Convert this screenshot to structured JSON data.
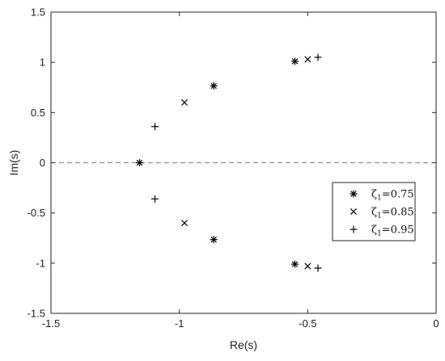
{
  "chart_data": {
    "type": "scatter",
    "xlabel": "Re(s)",
    "ylabel": "Im(s)",
    "xlim": [
      -1.5,
      0
    ],
    "ylim": [
      -1.5,
      1.5
    ],
    "xticks": [
      "-1.5",
      "-1",
      "-0.5",
      "0"
    ],
    "yticks": [
      "-1.5",
      "-1",
      "-0.5",
      "0",
      "0.5",
      "1",
      "1.5"
    ],
    "xtick_values": [
      -1.5,
      -1,
      -0.5,
      0
    ],
    "ytick_values": [
      -1.5,
      -1,
      -0.5,
      0,
      0.5,
      1,
      1.5
    ],
    "grid": false,
    "reference_line": {
      "y": 0,
      "style": "dashed"
    },
    "legend_position": "right",
    "series": [
      {
        "name": "ζ1=0.75",
        "symbol": "ζ",
        "subscript": "1",
        "value_text": "=0.75",
        "marker": "asterisk",
        "points": [
          [
            -1.155,
            0
          ],
          [
            -0.866,
            0.765
          ],
          [
            -0.866,
            -0.765
          ],
          [
            -0.55,
            1.01
          ],
          [
            -0.55,
            -1.01
          ]
        ]
      },
      {
        "name": "ζ1=0.85",
        "symbol": "ζ",
        "subscript": "1",
        "value_text": "=0.85",
        "marker": "x",
        "points": [
          [
            -0.98,
            0.6
          ],
          [
            -0.98,
            -0.6
          ],
          [
            -0.5,
            1.03
          ],
          [
            -0.5,
            -1.03
          ]
        ]
      },
      {
        "name": "ζ1=0.95",
        "symbol": "ζ",
        "subscript": "1",
        "value_text": "=0.95",
        "marker": "plus",
        "points": [
          [
            -1.095,
            0.36
          ],
          [
            -1.095,
            -0.36
          ],
          [
            -0.46,
            1.05
          ],
          [
            -0.46,
            -1.05
          ]
        ]
      }
    ]
  },
  "colors": {
    "marker": "#000000",
    "axis": "#262626",
    "dashed_line": "#808080",
    "background": "#ffffff"
  }
}
